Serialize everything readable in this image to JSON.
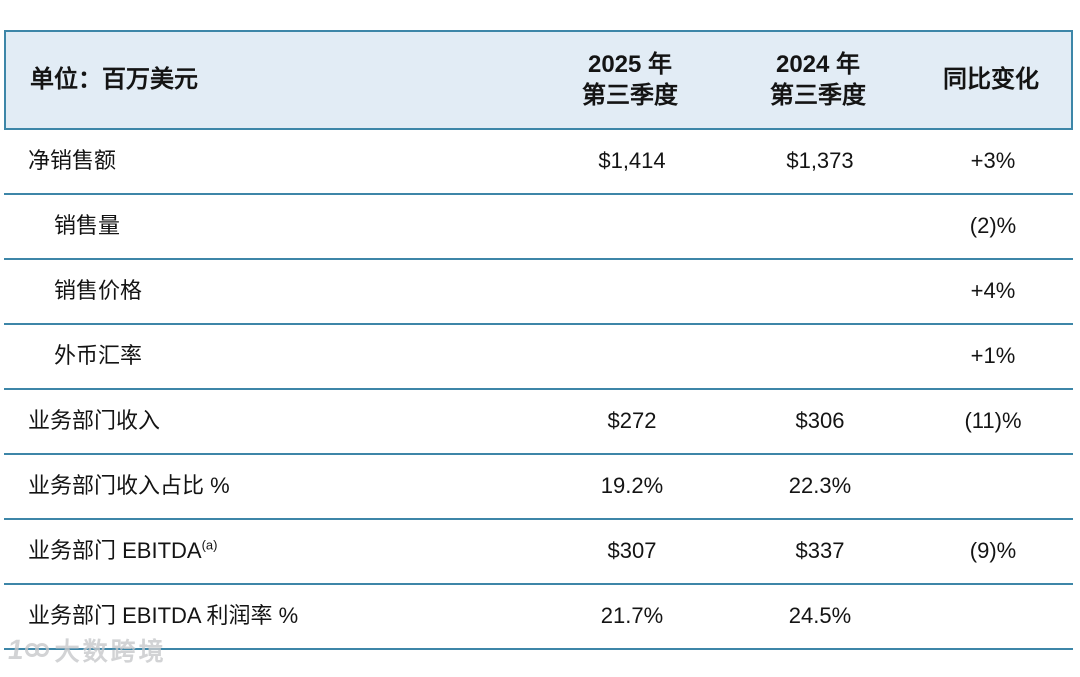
{
  "colors": {
    "border": "#3d86a8",
    "header_bg": "#e2ecf5",
    "text": "#141414",
    "watermark": "#c7c9cb"
  },
  "header": {
    "unit_label": "单位：百万美元",
    "col_2025": "2025 年\n第三季度",
    "col_2024": "2024 年\n第三季度",
    "col_yoy": "同比变化"
  },
  "chart_data": {
    "type": "table",
    "title": "单位：百万美元",
    "columns": [
      "单位：百万美元",
      "2025 年 第三季度",
      "2024 年 第三季度",
      "同比变化"
    ],
    "rows": [
      {
        "label": "净销售额",
        "indent": false,
        "superscript": "",
        "q3_2025": "$1,414",
        "q3_2024": "$1,373",
        "yoy_change": "+3%"
      },
      {
        "label": "销售量",
        "indent": true,
        "superscript": "",
        "q3_2025": "",
        "q3_2024": "",
        "yoy_change": "(2)%"
      },
      {
        "label": "销售价格",
        "indent": true,
        "superscript": "",
        "q3_2025": "",
        "q3_2024": "",
        "yoy_change": "+4%"
      },
      {
        "label": "外币汇率",
        "indent": true,
        "superscript": "",
        "q3_2025": "",
        "q3_2024": "",
        "yoy_change": "+1%"
      },
      {
        "label": "业务部门收入",
        "indent": false,
        "superscript": "",
        "q3_2025": "$272",
        "q3_2024": "$306",
        "yoy_change": "(11)%"
      },
      {
        "label": "业务部门收入占比 %",
        "indent": false,
        "superscript": "",
        "q3_2025": "19.2%",
        "q3_2024": "22.3%",
        "yoy_change": ""
      },
      {
        "label": "业务部门 EBITDA",
        "indent": false,
        "superscript": "(a)",
        "q3_2025": "$307",
        "q3_2024": "$337",
        "yoy_change": "(9)%"
      },
      {
        "label": "业务部门 EBITDA 利润率 %",
        "indent": false,
        "superscript": "",
        "q3_2025": "21.7%",
        "q3_2024": "24.5%",
        "yoy_change": ""
      }
    ]
  },
  "watermark": {
    "text": "大数跨境"
  }
}
